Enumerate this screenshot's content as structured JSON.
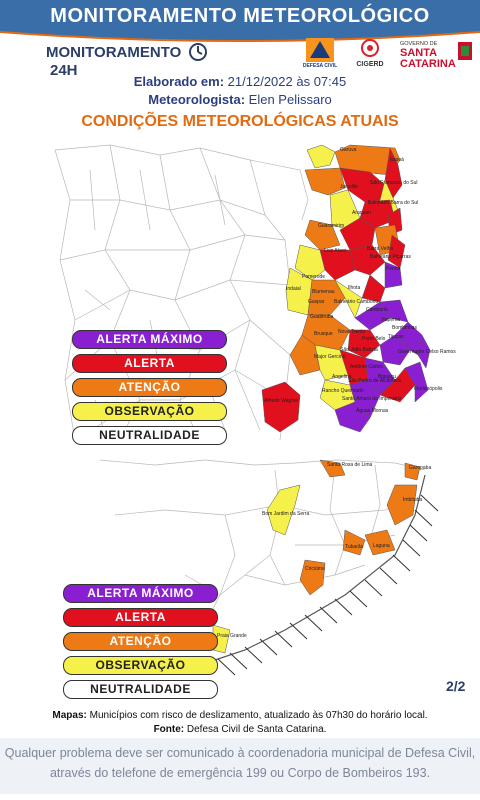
{
  "header": {
    "title": "MONITORAMENTO METEOROLÓGICO",
    "brand_text": "MONITORAMENTO",
    "brand_suffix": "24H"
  },
  "logos": {
    "defesa_civil": "DEFESA CIVIL",
    "cigerd": "CIGERD",
    "governo_line": "GOVERNO DE",
    "santa": "SANTA",
    "catarina": "CATARINA"
  },
  "meta": {
    "elaborado_label": "Elaborado em:",
    "elaborado_value": "21/12/2022 às 07:45",
    "meteorologista_label": "Meteorologista:",
    "meteorologista_value": "Elen Pelissaro"
  },
  "section_title": "CONDIÇÕES METEOROLÓGICAS ATUAIS",
  "legend": [
    {
      "label": "ALERTA MÁXIMO",
      "color": "#8a1fd1",
      "text_color": "#ffffff"
    },
    {
      "label": "ALERTA",
      "color": "#e0101e",
      "text_color": "#ffffff"
    },
    {
      "label": "ATENÇÃO",
      "color": "#ee7a16",
      "text_color": "#ffffff"
    },
    {
      "label": "OBSERVAÇÃO",
      "color": "#f6f04a",
      "text_color": "#222222"
    },
    {
      "label": "NEUTRALIDADE",
      "color": "#ffffff",
      "text_color": "#222222"
    }
  ],
  "map_north_cities": [
    "Garuva",
    "Itapoá",
    "São Francisco do Sul",
    "Joinville",
    "Balneário Barra do Sul",
    "Araquari",
    "Guaramirim",
    "Luiz Alves",
    "Barra Velha",
    "Balneário Piçarras",
    "Penha",
    "Pomerode",
    "Indaial",
    "Blumenau",
    "Ilhota",
    "Balneário Camboriú",
    "Gaspar",
    "Guabiruba",
    "Camboriú",
    "Itapema",
    "Bombinhas",
    "Brusque",
    "Porto Belo",
    "Nova Trento",
    "Tijucas",
    "São João Batista",
    "Major Gercino",
    "Governador Celso Ramos",
    "Angelina",
    "Antônio Carlos",
    "São Pedro de Alcântara",
    "Biguaçu",
    "Rancho Queimado",
    "Santo Amaro da Imperatriz",
    "Alfredo Wagner",
    "Águas Mornas",
    "Florianópolis"
  ],
  "map_south_cities": [
    "Santa Rosa de Lima",
    "Garopaba",
    "Imbituba",
    "Bom Jardim da Serra",
    "Tubarão",
    "Laguna",
    "Criciúma",
    "Praia Grande"
  ],
  "page_number": "2/2",
  "footnote": {
    "mapas_label": "Mapas:",
    "mapas_text": "Municípios com risco de deslizamento, atualizado às 07h30 do horário local.",
    "fonte_label": "Fonte:",
    "fonte_text": "Defesa Civil de Santa Catarina."
  },
  "bottom": {
    "line1": "Qualquer problema deve ser comunicado à coordenadoria municipal de Defesa Civil,",
    "line2": "através do telefone de emergência 199 ou Corpo de Bombeiros 193."
  }
}
